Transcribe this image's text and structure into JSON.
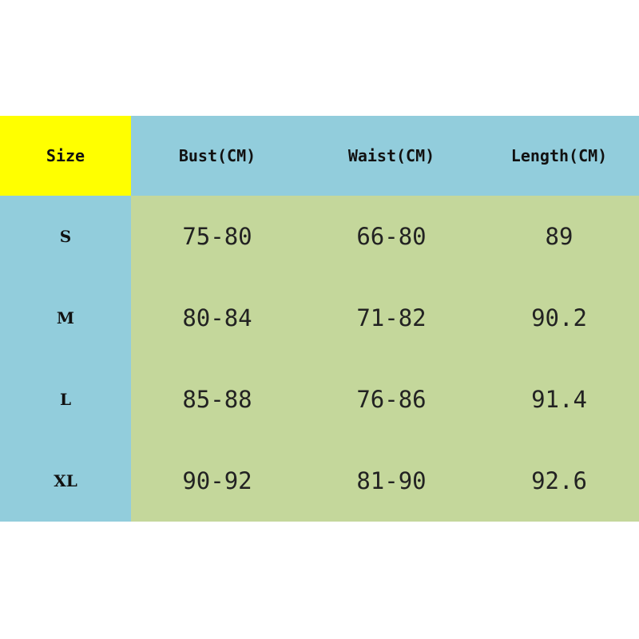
{
  "colors": {
    "header_size": "#ffff00",
    "header": "#92cddc",
    "size_column": "#92cddc",
    "body": "#c4d79b"
  },
  "headers": [
    "Size",
    "Bust(CM)",
    "Waist(CM)",
    "Length(CM)"
  ],
  "rows": [
    [
      "S",
      "75-80",
      "66-80",
      "89"
    ],
    [
      "M",
      "80-84",
      "71-82",
      "90.2"
    ],
    [
      "L",
      "85-88",
      "76-86",
      "91.4"
    ],
    [
      "XL",
      "90-92",
      "81-90",
      "92.6"
    ]
  ]
}
